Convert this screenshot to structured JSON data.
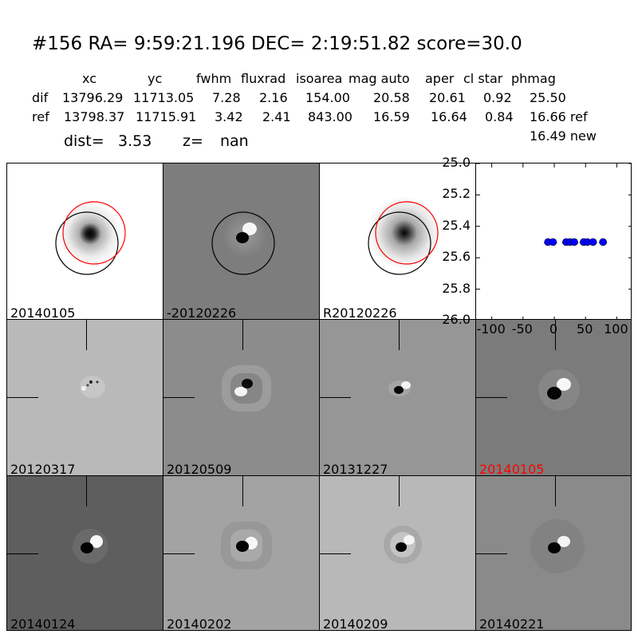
{
  "header": {
    "title": "#156   RA= 9:59:21.196 DEC= 2:19:51.82       score=30.0",
    "columns": [
      "xc",
      "yc",
      "fwhm",
      "fluxrad",
      "isoarea",
      "mag auto",
      "aper",
      "cl star",
      "phmag"
    ],
    "rows": [
      {
        "label": "dif",
        "values": [
          "13796.29",
          "11713.05",
          "7.28",
          "2.16",
          "154.00",
          "20.58",
          "20.61",
          "0.92",
          "25.50"
        ]
      },
      {
        "label": "ref",
        "values": [
          "13798.37",
          "11715.91",
          "3.42",
          "2.41",
          "843.00",
          "16.59",
          "16.64",
          "0.84",
          "16.66 ref"
        ]
      }
    ],
    "extra_phmag": "16.49 new",
    "dist_label": "dist=",
    "dist_value": "3.53",
    "z_label": "z=",
    "z_value": "nan"
  },
  "stamps_top": [
    "20140105",
    "-20120226",
    "R20120226"
  ],
  "stamps_grid": [
    {
      "label": "20120317",
      "highlight": false
    },
    {
      "label": "20120509",
      "highlight": false
    },
    {
      "label": "20131227",
      "highlight": false
    },
    {
      "label": "20140105",
      "highlight": true
    },
    {
      "label": "20140124",
      "highlight": false
    },
    {
      "label": "20140202",
      "highlight": false
    },
    {
      "label": "20140209",
      "highlight": false
    },
    {
      "label": "20140221",
      "highlight": false
    }
  ],
  "colors": {
    "highlight": "#ff0000",
    "points": "#0000ff"
  },
  "chart_data": {
    "type": "scatter",
    "title": "",
    "xlabel": "",
    "ylabel": "",
    "xlim": [
      -125,
      125
    ],
    "ylim": [
      26.0,
      25.0
    ],
    "y_inverted": true,
    "xticks": [
      "-100",
      "-50",
      "0",
      "50",
      "100"
    ],
    "yticks": [
      "25.0",
      "25.2",
      "25.4",
      "25.6",
      "25.8",
      "26.0"
    ],
    "series": [
      {
        "x": [
          -10,
          -2,
          19,
          25,
          32,
          47,
          53,
          62,
          78
        ],
        "y": [
          25.5,
          25.5,
          25.5,
          25.5,
          25.5,
          25.5,
          25.5,
          25.5,
          25.5
        ]
      }
    ]
  }
}
